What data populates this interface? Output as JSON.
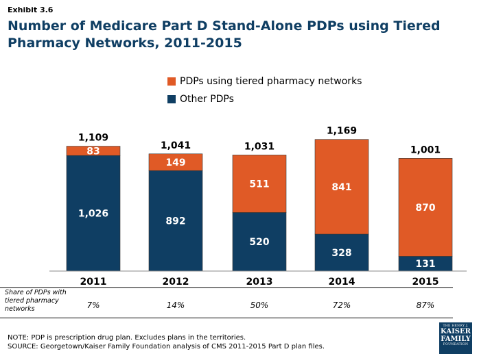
{
  "exhibit_label": "Exhibit 3.6",
  "title": "Number of Medicare Part D Stand-Alone PDPs using Tiered Pharmacy Networks, 2011-2015",
  "colors": {
    "tiered": "#e05a26",
    "other": "#0f3e63"
  },
  "chart_data": {
    "type": "bar",
    "stacked": true,
    "categories": [
      "2011",
      "2012",
      "2013",
      "2014",
      "2015"
    ],
    "series": [
      {
        "name": "Other PDPs",
        "values": [
          1026,
          892,
          520,
          328,
          131
        ]
      },
      {
        "name": "PDPs using tiered pharmacy networks",
        "values": [
          83,
          149,
          511,
          841,
          870
        ]
      }
    ],
    "totals": [
      1109,
      1041,
      1031,
      1169,
      1001
    ],
    "legend": [
      "PDPs using tiered pharmacy networks",
      "Other PDPs"
    ],
    "legend_position": "top"
  },
  "share_row": {
    "label": "Share of PDPs with tiered pharmacy networks",
    "values": [
      "7%",
      "14%",
      "50%",
      "72%",
      "87%"
    ]
  },
  "notes": {
    "note": "NOTE: PDP is prescription drug plan.  Excludes plans in the territories.",
    "source": "SOURCE: Georgetown/Kaiser Family Foundation analysis of CMS 2011-2015 Part D plan files."
  },
  "logo": {
    "line1": "THE HENRY J.",
    "line2a": "KAISER",
    "line2b": "FAMILY",
    "line3": "FOUNDATION"
  }
}
